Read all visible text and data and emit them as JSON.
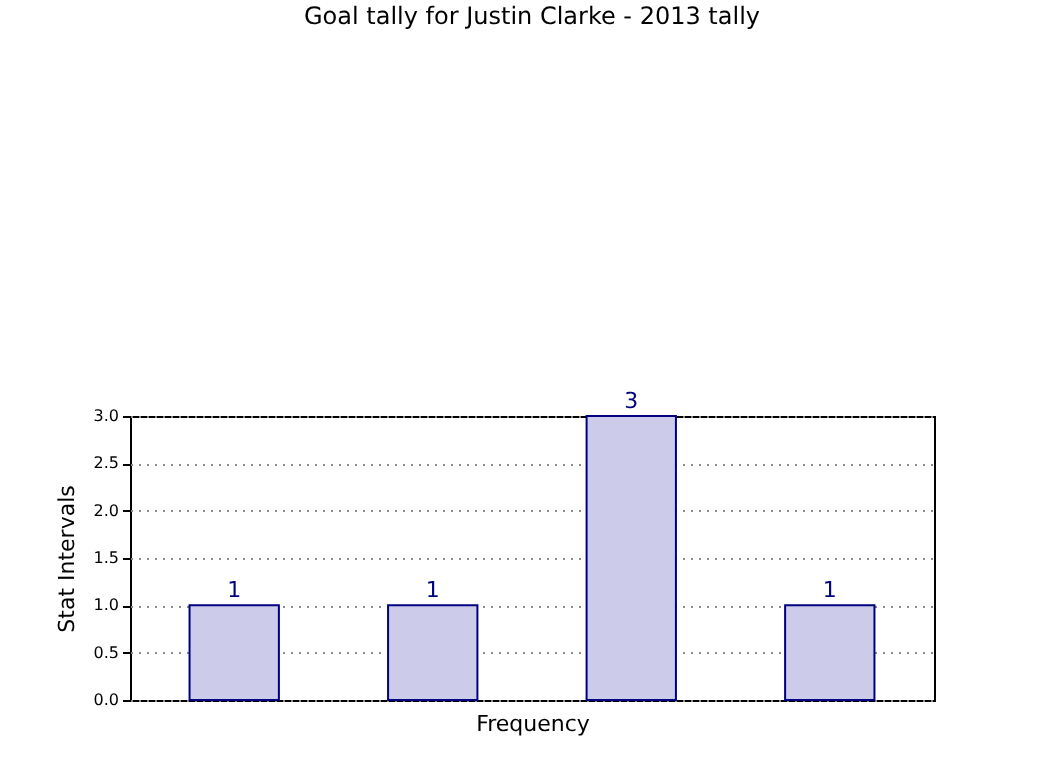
{
  "chart_data": {
    "type": "bar",
    "title": "Goal tally for Justin Clarke - 2013 tally",
    "xlabel": "Frequency",
    "ylabel": "Stat Intervals",
    "categories": [
      null,
      null,
      null,
      null
    ],
    "values": [
      1,
      1,
      3,
      1
    ],
    "color": "#ccccea",
    "ylim": [
      0,
      3
    ],
    "yticks": [
      {
        "value": 0,
        "label": "0.0"
      },
      0.5,
      {
        "value": 1,
        "label": "1.0"
      },
      1.5,
      {
        "value": 2,
        "label": "2.0"
      },
      2.5,
      {
        "value": 3,
        "label": "3.0"
      }
    ],
    "grid": "y",
    "data_labels": true
  }
}
